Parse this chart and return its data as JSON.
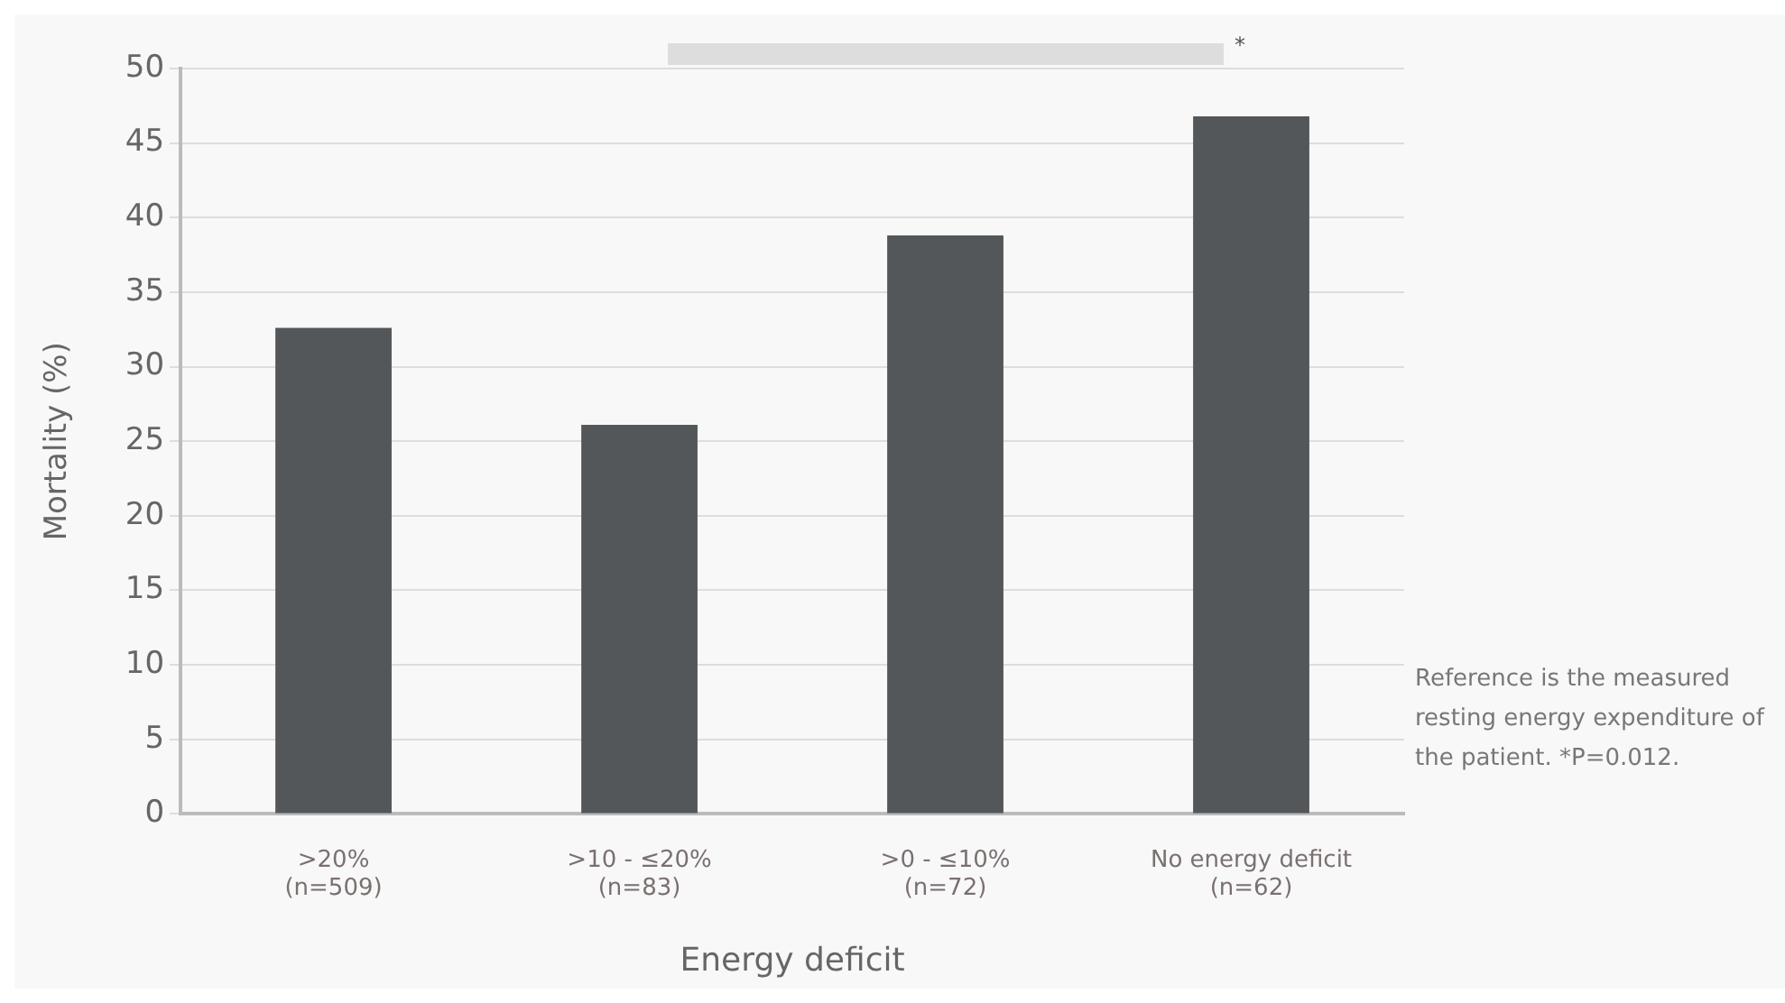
{
  "chart_data": {
    "type": "bar",
    "xlabel": "Energy deficit",
    "ylabel": "Mortality (%)",
    "categories": [
      ">20%\n(n=509)",
      ">10 - ≤20%\n(n=83)",
      ">0 - ≤10%\n(n=72)",
      "No energy deficit\n(n=62)"
    ],
    "values": [
      32.6,
      26.1,
      38.8,
      46.8
    ],
    "color": "#53575a",
    "ylim": [
      0,
      50
    ],
    "yticks": [
      0,
      5,
      10,
      15,
      20,
      25,
      30,
      35,
      40,
      45,
      50
    ],
    "grid": "y",
    "annotations": [
      "*",
      "Reference is the measured resting energy expenditure of the patient. *P=0.012."
    ]
  }
}
